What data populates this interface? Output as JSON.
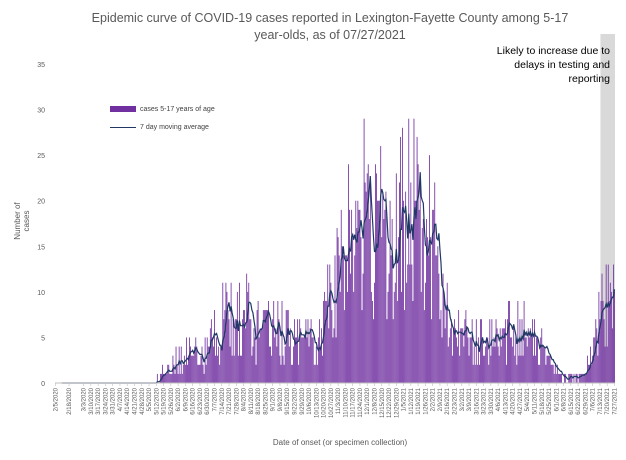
{
  "chart_data": {
    "type": "bar",
    "title": "Epidemic curve of COVID-19 cases reported in Lexington-Fayette County among 5-17\nyear-olds, as of 07/27/2021",
    "xlabel": "Date of onset (or specimen collection)",
    "ylabel": "Number of cases",
    "ylim": [
      0,
      35
    ],
    "yticks": [
      0,
      5,
      10,
      15,
      20,
      25,
      30,
      35
    ],
    "xlim": [
      "2020-02-05",
      "2021-07-27"
    ],
    "xticks": [
      "2/5/2020",
      "2/18/2020",
      "3/3/2020",
      "3/10/2020",
      "3/17/2020",
      "3/24/2020",
      "3/31/2020",
      "4/7/2020",
      "4/14/2020",
      "4/21/2020",
      "4/28/2020",
      "5/5/2020",
      "5/12/2020",
      "5/19/2020",
      "5/26/2020",
      "6/2/2020",
      "6/9/2020",
      "6/16/2020",
      "6/23/2020",
      "6/30/2020",
      "7/7/2020",
      "7/14/2020",
      "7/21/2020",
      "7/28/2020",
      "8/4/2020",
      "8/11/2020",
      "8/18/2020",
      "8/25/2020",
      "9/1/2020",
      "9/8/2020",
      "9/15/2020",
      "9/22/2020",
      "9/29/2020",
      "10/6/2020",
      "10/13/2020",
      "10/20/2020",
      "10/27/2020",
      "11/3/2020",
      "11/10/2020",
      "11/17/2020",
      "11/24/2020",
      "12/1/2020",
      "12/8/2020",
      "12/15/2020",
      "12/22/2020",
      "12/29/2020",
      "1/5/2021",
      "1/12/2021",
      "1/19/2021",
      "1/26/2021",
      "2/2/2021",
      "2/9/2021",
      "2/16/2021",
      "2/23/2021",
      "3/2/2021",
      "3/9/2021",
      "3/16/2021",
      "3/23/2021",
      "3/30/2021",
      "4/6/2021",
      "4/13/2021",
      "4/20/2021",
      "4/27/2021",
      "5/4/2021",
      "5/11/2021",
      "5/18/2021",
      "5/25/2021",
      "6/1/2021",
      "6/8/2021",
      "6/15/2021",
      "6/22/2021",
      "6/29/2021",
      "7/6/2021",
      "7/13/2021",
      "7/20/2021",
      "7/27/2021"
    ],
    "shaded_region": {
      "start": "2021-07-14",
      "end": "2021-07-27",
      "label": "Likely to increase due to\ndelays in testing and\nreporting"
    },
    "grid": false,
    "legend_position": "top-left",
    "series": [
      {
        "name": "cases 5-17 years of age",
        "kind": "bar",
        "color": "#7030a0",
        "weekly_means": [
          {
            "week_start": "2020-02-05",
            "mean": 0
          },
          {
            "week_start": "2020-02-12",
            "mean": 0
          },
          {
            "week_start": "2020-02-19",
            "mean": 0
          },
          {
            "week_start": "2020-02-26",
            "mean": 0
          },
          {
            "week_start": "2020-03-04",
            "mean": 0.1
          },
          {
            "week_start": "2020-03-11",
            "mean": 0.1
          },
          {
            "week_start": "2020-03-18",
            "mean": 0
          },
          {
            "week_start": "2020-03-25",
            "mean": 0.1
          },
          {
            "week_start": "2020-04-01",
            "mean": 0.2
          },
          {
            "week_start": "2020-04-08",
            "mean": 0.4
          },
          {
            "week_start": "2020-04-15",
            "mean": 0.3
          },
          {
            "week_start": "2020-04-22",
            "mean": 0.2
          },
          {
            "week_start": "2020-04-29",
            "mean": 0.1
          },
          {
            "week_start": "2020-05-06",
            "mean": 0.3
          },
          {
            "week_start": "2020-05-13",
            "mean": 0.8
          },
          {
            "week_start": "2020-05-20",
            "mean": 1.5
          },
          {
            "week_start": "2020-05-27",
            "mean": 2.5
          },
          {
            "week_start": "2020-06-03",
            "mean": 3
          },
          {
            "week_start": "2020-06-10",
            "mean": 3.2
          },
          {
            "week_start": "2020-06-17",
            "mean": 2.8
          },
          {
            "week_start": "2020-06-24",
            "mean": 3
          },
          {
            "week_start": "2020-07-01",
            "mean": 4.5
          },
          {
            "week_start": "2020-07-08",
            "mean": 6
          },
          {
            "week_start": "2020-07-15",
            "mean": 7
          },
          {
            "week_start": "2020-07-22",
            "mean": 6.8
          },
          {
            "week_start": "2020-07-29",
            "mean": 8
          },
          {
            "week_start": "2020-08-05",
            "mean": 7.5
          },
          {
            "week_start": "2020-08-12",
            "mean": 6
          },
          {
            "week_start": "2020-08-19",
            "mean": 5.5
          },
          {
            "week_start": "2020-08-26",
            "mean": 6.5
          },
          {
            "week_start": "2020-09-02",
            "mean": 6
          },
          {
            "week_start": "2020-09-09",
            "mean": 5
          },
          {
            "week_start": "2020-09-16",
            "mean": 4.8
          },
          {
            "week_start": "2020-09-23",
            "mean": 4.5
          },
          {
            "week_start": "2020-09-30",
            "mean": 4.2
          },
          {
            "week_start": "2020-10-07",
            "mean": 5
          },
          {
            "week_start": "2020-10-14",
            "mean": 6
          },
          {
            "week_start": "2020-10-21",
            "mean": 8
          },
          {
            "week_start": "2020-10-28",
            "mean": 10
          },
          {
            "week_start": "2020-11-04",
            "mean": 13
          },
          {
            "week_start": "2020-11-11",
            "mean": 16
          },
          {
            "week_start": "2020-11-18",
            "mean": 23
          },
          {
            "week_start": "2020-11-25",
            "mean": 22
          },
          {
            "week_start": "2020-12-02",
            "mean": 18
          },
          {
            "week_start": "2020-12-09",
            "mean": 17
          },
          {
            "week_start": "2020-12-16",
            "mean": 15
          },
          {
            "week_start": "2020-12-23",
            "mean": 13
          },
          {
            "week_start": "2020-12-30",
            "mean": 17
          },
          {
            "week_start": "2021-01-06",
            "mean": 19.5
          },
          {
            "week_start": "2021-01-13",
            "mean": 19
          },
          {
            "week_start": "2021-01-20",
            "mean": 17.5
          },
          {
            "week_start": "2021-01-27",
            "mean": 16
          },
          {
            "week_start": "2021-02-03",
            "mean": 12
          },
          {
            "week_start": "2021-02-10",
            "mean": 9
          },
          {
            "week_start": "2021-02-17",
            "mean": 6.5
          },
          {
            "week_start": "2021-02-24",
            "mean": 6
          },
          {
            "week_start": "2021-03-03",
            "mean": 5.5
          },
          {
            "week_start": "2021-03-10",
            "mean": 4.5
          },
          {
            "week_start": "2021-03-17",
            "mean": 4.5
          },
          {
            "week_start": "2021-03-24",
            "mean": 4
          },
          {
            "week_start": "2021-03-31",
            "mean": 4.5
          },
          {
            "week_start": "2021-04-07",
            "mean": 5
          },
          {
            "week_start": "2021-04-14",
            "mean": 6
          },
          {
            "week_start": "2021-04-21",
            "mean": 6.5
          },
          {
            "week_start": "2021-04-28",
            "mean": 6
          },
          {
            "week_start": "2021-05-05",
            "mean": 5
          },
          {
            "week_start": "2021-05-12",
            "mean": 4
          },
          {
            "week_start": "2021-05-19",
            "mean": 3
          },
          {
            "week_start": "2021-05-26",
            "mean": 2
          },
          {
            "week_start": "2021-06-02",
            "mean": 1.2
          },
          {
            "week_start": "2021-06-09",
            "mean": 0.6
          },
          {
            "week_start": "2021-06-16",
            "mean": 0.8
          },
          {
            "week_start": "2021-06-23",
            "mean": 1.2
          },
          {
            "week_start": "2021-06-30",
            "mean": 2
          },
          {
            "week_start": "2021-07-07",
            "mean": 5
          },
          {
            "week_start": "2021-07-14",
            "mean": 9
          },
          {
            "week_start": "2021-07-21",
            "mean": 8
          }
        ]
      },
      {
        "name": "7 day moving average",
        "kind": "line",
        "color": "#1f3864"
      }
    ]
  }
}
